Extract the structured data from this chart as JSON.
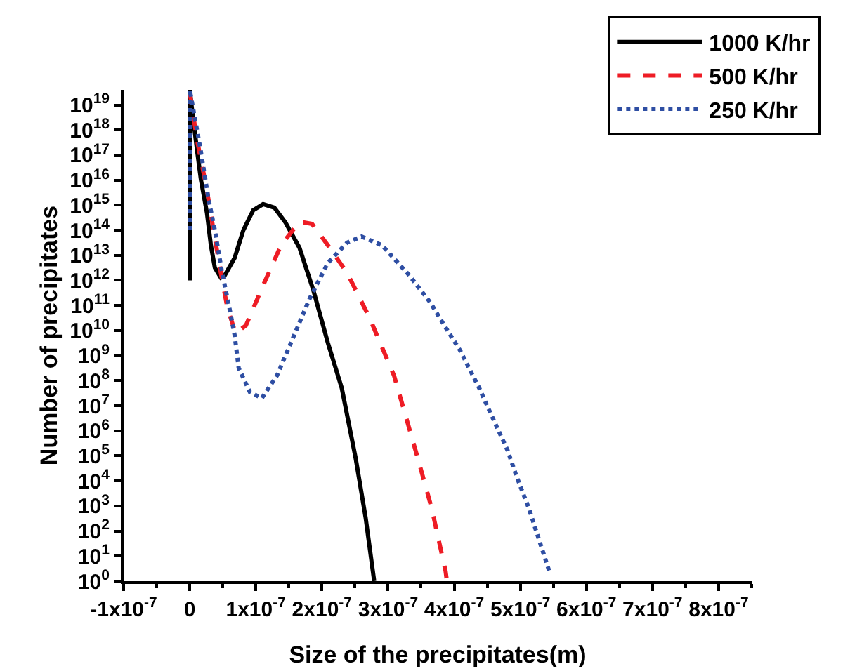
{
  "chart_data": {
    "type": "line",
    "xlabel": "Size of the precipitates(m)",
    "ylabel": "Number of precipitates",
    "log": "y",
    "grid": false,
    "legend": "top right",
    "xlim": [
      -1e-07,
      8.5e-07
    ],
    "xticks": [
      {
        "value": -1e-07,
        "label": "-1x10$^{-7}$"
      },
      0,
      {
        "value": 1e-07,
        "label": "1x10$^{-7}$"
      },
      {
        "value": 2e-07,
        "label": "2x10$^{-7}$"
      },
      {
        "value": 3e-07,
        "label": "3x10$^{-7}$"
      },
      {
        "value": 4e-07,
        "label": "4x10$^{-7}$"
      },
      {
        "value": 5e-07,
        "label": "5x10$^{-7}$"
      },
      {
        "value": 6e-07,
        "label": "6x10$^{-7}$"
      },
      {
        "value": 7e-07,
        "label": "7x10$^{-7}$"
      },
      {
        "value": 8e-07,
        "label": "8x10$^{-7}$"
      }
    ],
    "ylim": [
      1,
      4e+19
    ],
    "yticks": [
      {
        "value": 1,
        "label": "10$^{0}$"
      },
      {
        "value": 10.0,
        "label": "10$^{1}$"
      },
      {
        "value": 100.0,
        "label": "10$^{2}$"
      },
      {
        "value": 1000.0,
        "label": "10$^{3}$"
      },
      {
        "value": 10000.0,
        "label": "10$^{4}$"
      },
      {
        "value": 100000.0,
        "label": "10$^{5}$"
      },
      {
        "value": 1000000.0,
        "label": "10$^{6}$"
      },
      {
        "value": 10000000.0,
        "label": "10$^{7}$"
      },
      {
        "value": 100000000.0,
        "label": "10$^{8}$"
      },
      {
        "value": 1000000000.0,
        "label": "10$^{9}$"
      },
      {
        "value": 10000000000.0,
        "label": "10$^{10}$"
      },
      {
        "value": 100000000000.0,
        "label": "10$^{11}$"
      },
      {
        "value": 1000000000000.0,
        "label": "10$^{12}$"
      },
      {
        "value": 10000000000000.0,
        "label": "10$^{13}$"
      },
      {
        "value": 100000000000000.0,
        "label": "10$^{14}$"
      },
      {
        "value": 1000000000000000.0,
        "label": "10$^{15}$"
      },
      {
        "value": 1e+16,
        "label": "10$^{16}$"
      },
      {
        "value": 1e+17,
        "label": "10$^{17}$"
      },
      {
        "value": 1e+18,
        "label": "10$^{18}$"
      },
      {
        "value": 1e+19,
        "label": "10$^{19}$"
      }
    ],
    "series": [
      {
        "name": "1000 K/hr",
        "color": "#000000",
        "line_style": "solid",
        "x": [
          0,
          0,
          4e-09,
          1.1e-08,
          1.7e-08,
          2.6e-08,
          3.2e-08,
          3.8e-08,
          4.7e-08,
          5.3e-08,
          6.8e-08,
          8.1e-08,
          9.6e-08,
          1.11e-07,
          1.28e-07,
          1.45e-07,
          1.66e-07,
          1.87e-07,
          2.09e-07,
          2.3e-07,
          2.51e-07,
          2.66e-07,
          2.79e-07
        ],
        "values": [
          1000000000000.0,
          4e+19,
          5e+18,
          1.6e+17,
          1e+16,
          500000000000000.0,
          25000000000000.0,
          3200000000000.0,
          1300000000000.0,
          1600000000000.0,
          8000000000000.0,
          100000000000000.0,
          630000000000000.0,
          1100000000000000.0,
          800000000000000.0,
          200000000000000.0,
          20000000000000.0,
          400000000000.0,
          3200000000.0,
          50000000.0,
          80000.0,
          350,
          1
        ]
      },
      {
        "name": "500 K/hr",
        "color": "#ee1c25",
        "line_style": "dashed",
        "x": [
          0,
          1.1e-08,
          2.6e-08,
          3.6e-08,
          4.7e-08,
          5.7e-08,
          6.8e-08,
          7e-08,
          8.5e-08,
          1.11e-07,
          1.38e-07,
          1.66e-07,
          1.85e-07,
          2.09e-07,
          2.38e-07,
          2.72e-07,
          3.09e-07,
          3.45e-07,
          3.66e-07,
          3.87e-07,
          3.89e-07
        ],
        "values": [
          3.2e+19,
          4e+17,
          4000000000000000.0,
          100000000000000.0,
          2000000000000.0,
          80000000000.0,
          10000000000.0,
          8000000000.0,
          16000000000.0,
          630000000000.0,
          25000000000000.0,
          220000000000000.0,
          180000000000000.0,
          25000000000000.0,
          2000000000000.0,
          32000000000.0,
          160000000.0,
          80000.0,
          800,
          2.5,
          1
        ]
      },
      {
        "name": "250 K/hr",
        "color": "#2e4ea3",
        "line_style": "dotted",
        "x": [
          0,
          0,
          1.1e-08,
          1.7e-08,
          2.8e-08,
          3.8e-08,
          4.9e-08,
          6e-08,
          6.8e-08,
          7.4e-08,
          9.1e-08,
          1.09e-07,
          1.32e-07,
          1.53e-07,
          1.81e-07,
          2.09e-07,
          2.38e-07,
          2.6e-07,
          2.91e-07,
          3.32e-07,
          3.64e-07,
          3.85e-07,
          4.09e-07,
          4.38e-07,
          4.55e-07,
          4.81e-07,
          4.94e-07,
          5.13e-07,
          5.26e-07,
          5.45e-07
        ],
        "values": [
          100000000000000.0,
          4e+19,
          1e+18,
          1.3e+17,
          2000000000000000.0,
          100000000000000.0,
          2000000000000.0,
          80000000000.0,
          6300000000.0,
          320000000.0,
          35000000.0,
          20000000.0,
          160000000.0,
          3200000000.0,
          180000000000.0,
          5000000000000.0,
          32000000000000.0,
          56000000000000.0,
          25000000000000.0,
          1600000000000.0,
          130000000000.0,
          16000000000.0,
          1600000000.0,
          50000000.0,
          5000000.0,
          160000.0,
          16000.0,
          800,
          70,
          2
        ]
      }
    ]
  }
}
